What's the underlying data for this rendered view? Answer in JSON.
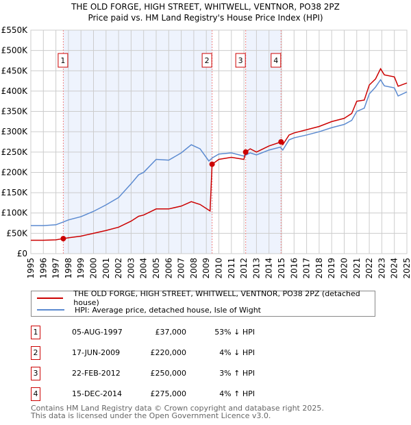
{
  "header": {
    "title": "THE OLD FORGE, HIGH STREET, WHITWELL, VENTNOR, PO38 2PZ",
    "subtitle": "Price paid vs. HM Land Registry's House Price Index (HPI)"
  },
  "chart_data": {
    "type": "line",
    "title": "THE OLD FORGE, HIGH STREET, WHITWELL, VENTNOR, PO38 2PZ",
    "subtitle": "Price paid vs. HM Land Registry's House Price Index (HPI)",
    "xlim": [
      1995,
      2025
    ],
    "ylim": [
      0,
      550000
    ],
    "x_ticks": [
      "1995",
      "1996",
      "1997",
      "1998",
      "1999",
      "2000",
      "2001",
      "2002",
      "2003",
      "2004",
      "2005",
      "2006",
      "2007",
      "2008",
      "2009",
      "2010",
      "2011",
      "2012",
      "2013",
      "2014",
      "2015",
      "2016",
      "2017",
      "2018",
      "2019",
      "2020",
      "2021",
      "2022",
      "2023",
      "2024",
      "2025"
    ],
    "y_ticks": [
      {
        "v": 0,
        "l": "£0"
      },
      {
        "v": 50000,
        "l": "£50K"
      },
      {
        "v": 100000,
        "l": "£100K"
      },
      {
        "v": 150000,
        "l": "£150K"
      },
      {
        "v": 200000,
        "l": "£200K"
      },
      {
        "v": 250000,
        "l": "£250K"
      },
      {
        "v": 300000,
        "l": "£300K"
      },
      {
        "v": 350000,
        "l": "£350K"
      },
      {
        "v": 400000,
        "l": "£400K"
      },
      {
        "v": 450000,
        "l": "£450K"
      },
      {
        "v": 500000,
        "l": "£500K"
      },
      {
        "v": 550000,
        "l": "£550K"
      }
    ],
    "grid": true,
    "shaded_ranges": [
      [
        1997.59,
        2009.46
      ],
      [
        2012.14,
        2014.96
      ]
    ],
    "series": [
      {
        "name": "THE OLD FORGE, HIGH STREET, WHITWELL, VENTNOR, PO38 2PZ (detached house)",
        "color": "#cc0000",
        "points": [
          [
            1995,
            33000
          ],
          [
            1996,
            33000
          ],
          [
            1997,
            34000
          ],
          [
            1997.59,
            37000
          ],
          [
            1998,
            39000
          ],
          [
            1999,
            43000
          ],
          [
            2000,
            50000
          ],
          [
            2001,
            57000
          ],
          [
            2002,
            65000
          ],
          [
            2003,
            80000
          ],
          [
            2003.6,
            92000
          ],
          [
            2004,
            95000
          ],
          [
            2005,
            110000
          ],
          [
            2006,
            110000
          ],
          [
            2007,
            117000
          ],
          [
            2007.8,
            128000
          ],
          [
            2008.5,
            121000
          ],
          [
            2009.3,
            105000
          ],
          [
            2009.46,
            220000
          ],
          [
            2010,
            232000
          ],
          [
            2011,
            237000
          ],
          [
            2012,
            232000
          ],
          [
            2012.14,
            250000
          ],
          [
            2012.5,
            258000
          ],
          [
            2013,
            250000
          ],
          [
            2014,
            265000
          ],
          [
            2014.96,
            275000
          ],
          [
            2015.1,
            268000
          ],
          [
            2015.6,
            292000
          ],
          [
            2016,
            297000
          ],
          [
            2017,
            305000
          ],
          [
            2018,
            313000
          ],
          [
            2019,
            325000
          ],
          [
            2020,
            333000
          ],
          [
            2020.6,
            345000
          ],
          [
            2021,
            375000
          ],
          [
            2021.6,
            378000
          ],
          [
            2022,
            415000
          ],
          [
            2022.5,
            430000
          ],
          [
            2022.9,
            455000
          ],
          [
            2023.2,
            440000
          ],
          [
            2024,
            435000
          ],
          [
            2024.3,
            412000
          ],
          [
            2025,
            420000
          ]
        ]
      },
      {
        "name": "HPI: Average price, detached house, Isle of Wight",
        "color": "#5b8ad0",
        "points": [
          [
            1995,
            69000
          ],
          [
            1996,
            69000
          ],
          [
            1997,
            71000
          ],
          [
            1997.59,
            78000
          ],
          [
            1998,
            83000
          ],
          [
            1999,
            91000
          ],
          [
            2000,
            104000
          ],
          [
            2001,
            120000
          ],
          [
            2002,
            138000
          ],
          [
            2003,
            172000
          ],
          [
            2003.6,
            194000
          ],
          [
            2004,
            200000
          ],
          [
            2005,
            232000
          ],
          [
            2006,
            230000
          ],
          [
            2007,
            248000
          ],
          [
            2007.8,
            268000
          ],
          [
            2008.5,
            258000
          ],
          [
            2009.2,
            228000
          ],
          [
            2009.5,
            236000
          ],
          [
            2010,
            245000
          ],
          [
            2011,
            248000
          ],
          [
            2012,
            240000
          ],
          [
            2012.5,
            248000
          ],
          [
            2013,
            243000
          ],
          [
            2014,
            255000
          ],
          [
            2014.9,
            262000
          ],
          [
            2015.1,
            255000
          ],
          [
            2015.6,
            280000
          ],
          [
            2016,
            285000
          ],
          [
            2017,
            292000
          ],
          [
            2018,
            300000
          ],
          [
            2019,
            310000
          ],
          [
            2020,
            318000
          ],
          [
            2020.6,
            328000
          ],
          [
            2021,
            350000
          ],
          [
            2021.6,
            358000
          ],
          [
            2022,
            393000
          ],
          [
            2022.5,
            410000
          ],
          [
            2022.9,
            428000
          ],
          [
            2023.2,
            413000
          ],
          [
            2024,
            408000
          ],
          [
            2024.3,
            388000
          ],
          [
            2025,
            398000
          ]
        ]
      }
    ],
    "annotations": [
      {
        "label": "1",
        "x": 1997.59,
        "y": 37000
      },
      {
        "label": "2",
        "x": 2009.46,
        "y": 220000
      },
      {
        "label": "3",
        "x": 2012.14,
        "y": 250000
      },
      {
        "label": "4",
        "x": 2014.96,
        "y": 275000
      }
    ],
    "legend_placement": "bottom"
  },
  "legend": [
    {
      "label": "THE OLD FORGE, HIGH STREET, WHITWELL, VENTNOR, PO38 2PZ (detached house)",
      "color": "#cc0000"
    },
    {
      "label": "HPI: Average price, detached house, Isle of Wight",
      "color": "#5b8ad0"
    }
  ],
  "transactions": [
    {
      "num": "1",
      "date": "05-AUG-1997",
      "price": "£37,000",
      "hpi": "53% ↓ HPI"
    },
    {
      "num": "2",
      "date": "17-JUN-2009",
      "price": "£220,000",
      "hpi": "4% ↓ HPI"
    },
    {
      "num": "3",
      "date": "22-FEB-2012",
      "price": "£250,000",
      "hpi": "3% ↑ HPI"
    },
    {
      "num": "4",
      "date": "15-DEC-2014",
      "price": "£275,000",
      "hpi": "4% ↑ HPI"
    }
  ],
  "footer": {
    "line1": "Contains HM Land Registry data © Crown copyright and database right 2025.",
    "line2": "This data is licensed under the Open Government Licence v3.0."
  }
}
